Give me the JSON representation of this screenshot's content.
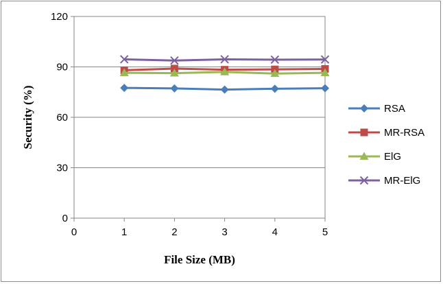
{
  "chart_data": {
    "type": "line",
    "title": "",
    "xlabel": "File Size (MB)",
    "ylabel": "Security (%)",
    "xlim": [
      0,
      5
    ],
    "ylim": [
      0,
      120
    ],
    "x_ticks": [
      0,
      1,
      2,
      3,
      4,
      5
    ],
    "y_ticks": [
      0,
      30,
      60,
      90,
      120
    ],
    "grid": "horizontal",
    "legend_position": "right",
    "x": [
      1,
      2,
      3,
      4,
      5
    ],
    "series": [
      {
        "name": "RSA",
        "values": [
          77.5,
          77.2,
          76.5,
          77.0,
          77.3
        ],
        "color": "#4a7ebb",
        "marker": "diamond"
      },
      {
        "name": "MR-RSA",
        "values": [
          88.0,
          89.0,
          88.3,
          88.5,
          88.8
        ],
        "color": "#be4b48",
        "marker": "square"
      },
      {
        "name": "ElG",
        "values": [
          86.5,
          86.3,
          87.0,
          86.0,
          86.5
        ],
        "color": "#98b954",
        "marker": "triangle"
      },
      {
        "name": "MR-ElG",
        "values": [
          94.5,
          93.8,
          94.5,
          94.3,
          94.4
        ],
        "color": "#7d60a0",
        "marker": "x"
      }
    ]
  }
}
